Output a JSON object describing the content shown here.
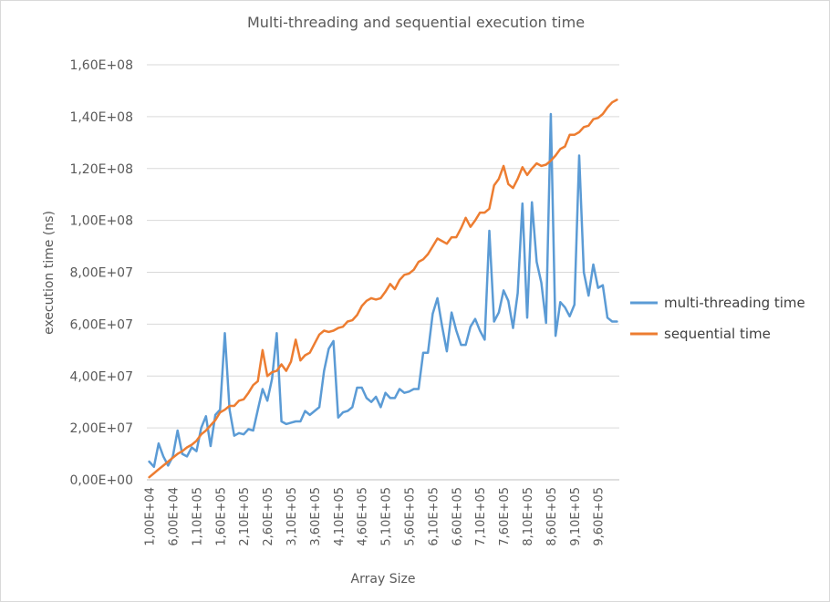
{
  "chart_data": {
    "type": "line",
    "title": "Multi-threading and sequential execution time",
    "xlabel": "Array Size",
    "ylabel": "execution time (ns)",
    "ylim": [
      0,
      160000000
    ],
    "ytick_labels": [
      "0,00E+00",
      "2,00E+07",
      "4,00E+07",
      "6,00E+07",
      "8,00E+07",
      "1,00E+08",
      "1,20E+08",
      "1,40E+08",
      "1,60E+08"
    ],
    "yticks": [
      0,
      20000000,
      40000000,
      60000000,
      80000000,
      100000000,
      120000000,
      140000000,
      160000000
    ],
    "x_start": 10000,
    "x_step": 10000,
    "x_count": 100,
    "xtick_labels": [
      "1,00E+04",
      "6,00E+04",
      "1,10E+05",
      "1,60E+05",
      "2,10E+05",
      "2,60E+05",
      "3,10E+05",
      "3,60E+05",
      "4,10E+05",
      "4,60E+05",
      "5,10E+05",
      "5,60E+05",
      "6,10E+05",
      "6,60E+05",
      "7,10E+05",
      "7,60E+05",
      "8,10E+05",
      "8,60E+05",
      "9,10E+05",
      "9,60E+05"
    ],
    "grid": true,
    "legend_position": "right",
    "series": [
      {
        "name": "multi-threading time",
        "color": "#5b9bd5",
        "values": [
          7000000,
          5000000,
          14000000,
          9000000,
          5500000,
          9000000,
          19000000,
          10000000,
          9000000,
          12500000,
          11000000,
          20000000,
          24500000,
          13000000,
          25000000,
          27000000,
          56500000,
          27000000,
          17000000,
          18000000,
          17500000,
          19500000,
          19000000,
          27000000,
          35000000,
          30500000,
          39000000,
          56500000,
          22500000,
          21500000,
          22000000,
          22500000,
          22500000,
          26500000,
          25000000,
          26500000,
          28000000,
          42000000,
          50500000,
          53500000,
          24000000,
          26000000,
          26500000,
          28000000,
          35500000,
          35500000,
          31500000,
          30000000,
          32000000,
          28000000,
          33500000,
          31500000,
          31500000,
          35000000,
          33500000,
          34000000,
          35000000,
          35000000,
          49000000,
          49000000,
          64000000,
          70000000,
          59000000,
          49500000,
          64500000,
          57500000,
          52000000,
          52000000,
          59000000,
          62000000,
          57500000,
          54000000,
          96000000,
          61000000,
          64500000,
          73000000,
          69000000,
          58500000,
          72000000,
          106500000,
          62500000,
          107000000,
          84000000,
          76000000,
          60500000,
          141000000,
          55500000,
          68500000,
          66500000,
          63000000,
          67500000,
          125000000,
          80000000,
          71000000,
          83000000,
          74000000,
          75000000,
          62500000,
          61000000,
          61000000
        ]
      },
      {
        "name": "sequential time",
        "color": "#ed7d31",
        "values": [
          1000000,
          2500000,
          4000000,
          5500000,
          7000000,
          8500000,
          10000000,
          11000000,
          12500000,
          13500000,
          15000000,
          17500000,
          19000000,
          21000000,
          23000000,
          26000000,
          27000000,
          28500000,
          28500000,
          30500000,
          31000000,
          33500000,
          36500000,
          38000000,
          50000000,
          40000000,
          41500000,
          42000000,
          44500000,
          42000000,
          45500000,
          54000000,
          46000000,
          48000000,
          49000000,
          52500000,
          56000000,
          57500000,
          57000000,
          57500000,
          58500000,
          59000000,
          61000000,
          61500000,
          63500000,
          67000000,
          69000000,
          70000000,
          69500000,
          70000000,
          72500000,
          75500000,
          73500000,
          77000000,
          79000000,
          79500000,
          81000000,
          84000000,
          85000000,
          87000000,
          90000000,
          93000000,
          92000000,
          91000000,
          93500000,
          93500000,
          97000000,
          101000000,
          97500000,
          100000000,
          103000000,
          103000000,
          104500000,
          113500000,
          116000000,
          121000000,
          114000000,
          112500000,
          116000000,
          120500000,
          117500000,
          120000000,
          122000000,
          121000000,
          121500000,
          123000000,
          125000000,
          127500000,
          128500000,
          133000000,
          133000000,
          134000000,
          136000000,
          136500000,
          139000000,
          139500000,
          141000000,
          143500000,
          145500000,
          146500000
        ]
      }
    ]
  }
}
